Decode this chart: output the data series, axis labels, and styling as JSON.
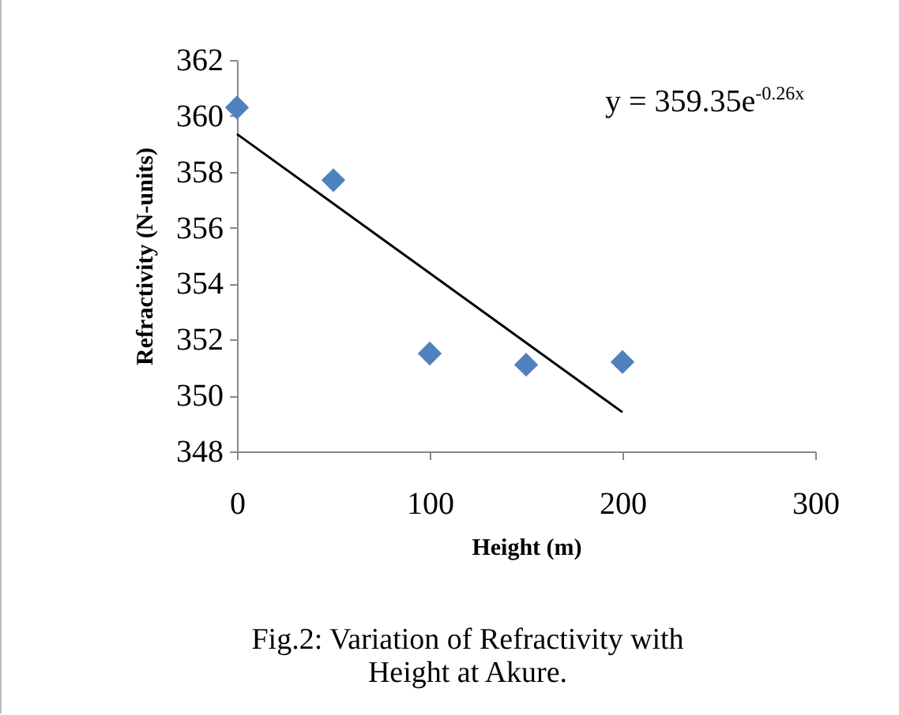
{
  "chart_data": {
    "type": "scatter",
    "xlabel": "Height (m)",
    "ylabel": "Refractivity (N-units)",
    "annotations": [
      "y = 359.35e$^{-0.26x}$",
      "Fig.2: Variation of Refractivity with Height at Akure."
    ],
    "x": [
      0,
      50,
      100,
      150,
      200
    ],
    "series": [
      {
        "color": "#4f81bd",
        "marker": "diamond",
        "values": [
          360.3,
          357.7,
          351.5,
          351.1,
          351.2
        ]
      },
      {
        "type": "line",
        "color": "#000000",
        "marker": "none",
        "x": [
          0,
          200
        ],
        "values": [
          359.35,
          349.4
        ]
      }
    ],
    "xlim": [
      0,
      300
    ],
    "xticks": [
      0,
      100,
      200,
      300
    ],
    "ylim": [
      348,
      362
    ],
    "yticks": [
      348,
      350,
      352,
      354,
      356,
      358,
      360,
      362
    ],
    "grid": false
  }
}
